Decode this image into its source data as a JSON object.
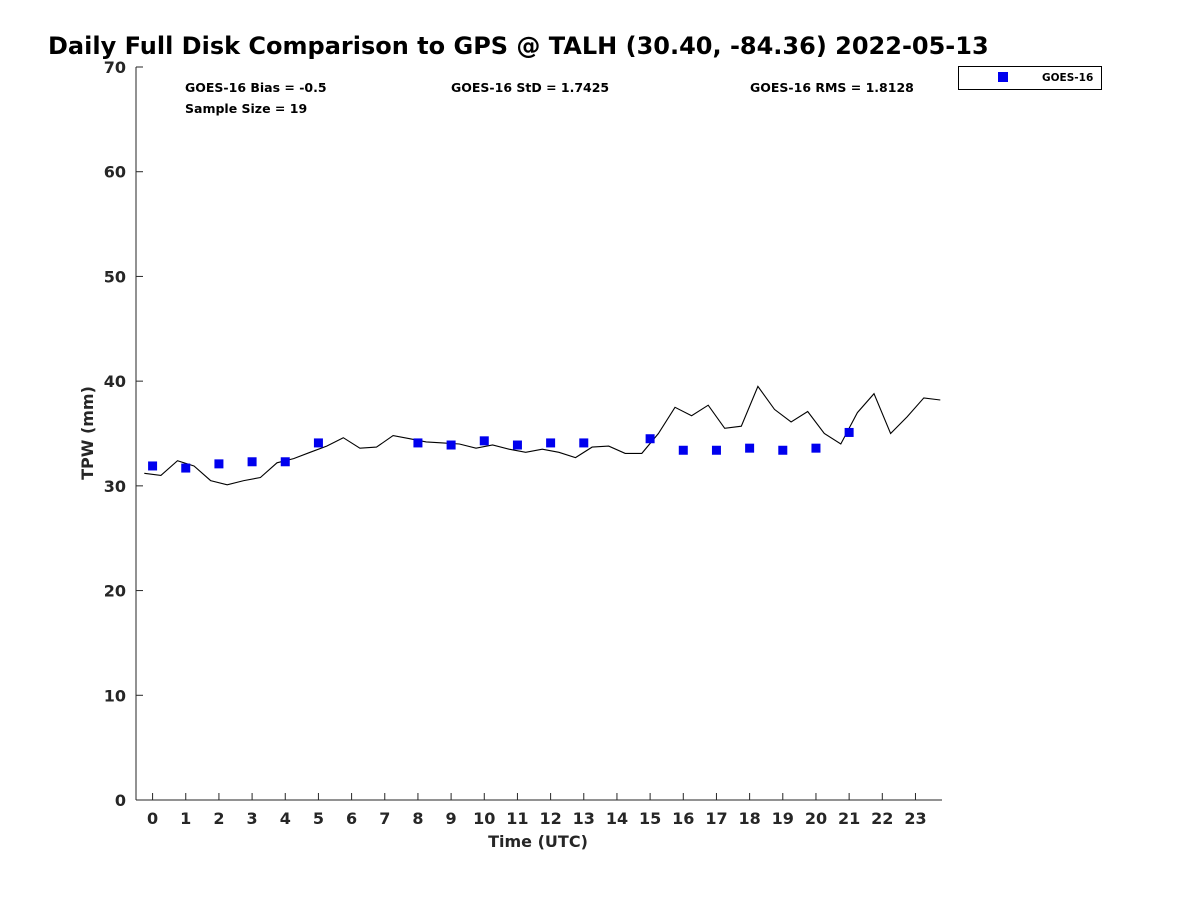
{
  "chart_data": {
    "type": "scatter",
    "title": "Daily Full Disk Comparison to GPS @ TALH (30.40, -84.36) 2022-05-13",
    "xlabel": "Time (UTC)",
    "ylabel": "TPW (mm)",
    "xlim": [
      -0.5,
      23.8
    ],
    "ylim": [
      0,
      70
    ],
    "x_ticks": [
      "0",
      "1",
      "2",
      "3",
      "4",
      "5",
      "6",
      "7",
      "8",
      "9",
      "10",
      "11",
      "12",
      "13",
      "14",
      "15",
      "16",
      "17",
      "18",
      "19",
      "20",
      "21",
      "22",
      "23"
    ],
    "y_ticks": [
      "0",
      "10",
      "20",
      "30",
      "40",
      "50",
      "60",
      "70"
    ],
    "grid": false,
    "legend_position": "top-right outside",
    "stats": {
      "bias": "GOES-16 Bias = -0.5",
      "std": "GOES-16 StD = 1.7425",
      "rms": "GOES-16 RMS = 1.8128",
      "sample_size": "Sample Size = 19"
    },
    "series": [
      {
        "name": "GOES-16",
        "kind": "scatter",
        "marker": "square",
        "color": "#0000ee",
        "x": [
          0,
          1,
          2,
          3,
          4,
          5,
          8,
          9,
          10,
          11,
          12,
          13,
          15,
          16,
          17,
          18,
          19,
          20,
          21
        ],
        "y": [
          31.9,
          31.7,
          32.1,
          32.3,
          32.3,
          34.1,
          34.1,
          33.9,
          34.3,
          33.9,
          34.1,
          34.1,
          34.5,
          33.4,
          33.4,
          33.6,
          33.4,
          33.6,
          35.1
        ]
      },
      {
        "kind": "line",
        "color": "#000000",
        "x": [
          -0.25,
          0.25,
          0.75,
          1.25,
          1.75,
          2.25,
          2.75,
          3.25,
          3.75,
          4.25,
          4.75,
          5.25,
          5.75,
          6.25,
          6.75,
          7.25,
          7.75,
          8.25,
          8.75,
          9.25,
          9.75,
          10.25,
          10.75,
          11.25,
          11.75,
          12.25,
          12.75,
          13.25,
          13.75,
          14.25,
          14.75,
          15.25,
          15.75,
          16.25,
          16.75,
          17.25,
          17.75,
          18.25,
          18.75,
          19.25,
          19.75,
          20.25,
          20.75,
          21.25,
          21.75,
          22.25,
          22.75,
          23.25,
          23.75
        ],
        "y": [
          31.2,
          31.0,
          32.4,
          31.9,
          30.5,
          30.1,
          30.5,
          30.8,
          32.2,
          32.6,
          33.2,
          33.8,
          34.6,
          33.6,
          33.7,
          34.8,
          34.5,
          34.2,
          34.1,
          34.0,
          33.6,
          33.9,
          33.5,
          33.2,
          33.5,
          33.2,
          32.7,
          33.7,
          33.8,
          33.1,
          33.1,
          35.0,
          37.5,
          36.7,
          37.7,
          35.5,
          35.7,
          39.5,
          37.3,
          36.1,
          37.1,
          35.0,
          34.0,
          37.0,
          38.8,
          35.0,
          36.6,
          38.4,
          38.2
        ]
      }
    ]
  }
}
